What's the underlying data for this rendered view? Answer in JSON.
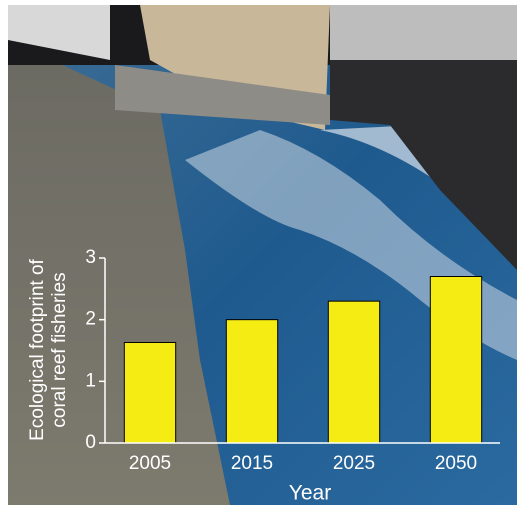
{
  "chart_data": {
    "type": "bar",
    "ylabel": [
      "Ecological footprint of",
      "coral reef fisheries"
    ],
    "xlabel": "Year",
    "categories": [
      "2005",
      "2015",
      "2025",
      "2050"
    ],
    "values": [
      1.63,
      2.0,
      2.3,
      2.7
    ],
    "color": "#f5ec14",
    "ylim": [
      0,
      3
    ],
    "yticks": [
      0,
      1,
      2,
      3
    ],
    "grid": false
  }
}
